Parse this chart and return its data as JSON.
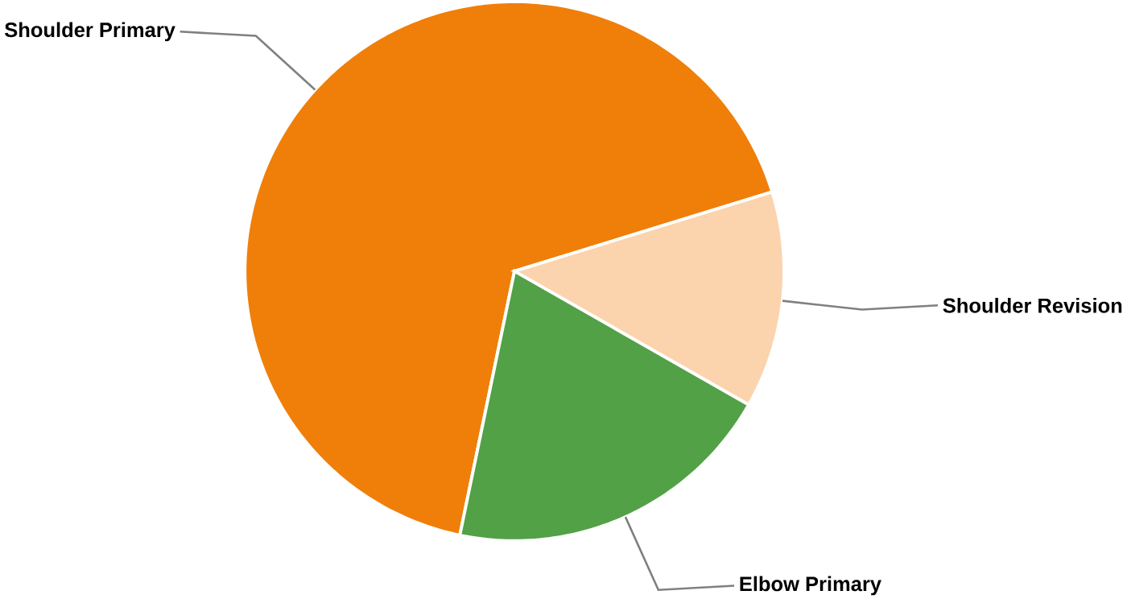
{
  "chart_data": {
    "type": "pie",
    "categories": [
      "Shoulder Primary",
      "Shoulder Revision",
      "Elbow Primary"
    ],
    "values": [
      67,
      13,
      20
    ],
    "colors": [
      "#f07f09",
      "#fbd3ad",
      "#52a146"
    ]
  }
}
